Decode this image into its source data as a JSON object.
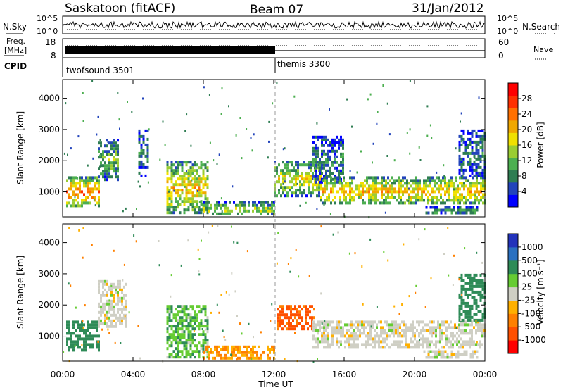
{
  "header": {
    "station": "Saskatoon (fitACF)",
    "beam": "Beam 07",
    "date": "31/Jan/2012"
  },
  "left_labels": {
    "nsky": "N.Sky",
    "freq_line1": "Freq.",
    "freq_line2": "[MHz]",
    "cpid": "CPID"
  },
  "right_labels": {
    "nsearch": "N.Search",
    "nave": "Nave"
  },
  "noise_panel": {
    "left_ticks": [
      "10^5",
      "10^0"
    ],
    "right_ticks": [
      "10^5",
      "10^0"
    ]
  },
  "freq_panel": {
    "left_ticks": [
      "18",
      "8"
    ],
    "right_ticks": [
      "60",
      "0"
    ]
  },
  "cpid_panel": {
    "programs": [
      {
        "label": "twofsound 3501",
        "start_hour": 0
      },
      {
        "label": "themis 3300",
        "start_hour": 12
      }
    ]
  },
  "power_colorbar": {
    "label": "Power [dB]",
    "ticks": [
      "28",
      "24",
      "20",
      "16",
      "12",
      "8",
      "4"
    ],
    "colors": [
      "#0000ff",
      "#2244bb",
      "#2e7d52",
      "#4caf50",
      "#9acd32",
      "#f0e000",
      "#f0a800",
      "#ff7000",
      "#ff3000",
      "#ff0000"
    ]
  },
  "velocity_colorbar": {
    "label": "Velocity [m s⁻¹]",
    "ticks": [
      "1000",
      "500",
      "100",
      "25",
      "-25",
      "-100",
      "-500",
      "-1000"
    ],
    "colors": [
      "#2233bb",
      "#2a70c0",
      "#2e8b57",
      "#66cc33",
      "#cfcfc4",
      "#ffb000",
      "#ff8000",
      "#ff5000",
      "#ff0000"
    ]
  },
  "chart_data": [
    {
      "type": "heatmap",
      "quantity": "Power",
      "ylabel": "Slant Range [km]",
      "y_ticks": [
        1000,
        2000,
        3000,
        4000
      ],
      "ylim": [
        200,
        4600
      ],
      "xlim": [
        0,
        24
      ],
      "x_ticks": [
        "00:00",
        "04:00",
        "08:00",
        "12:00",
        "16:00",
        "20:00",
        "00:00"
      ],
      "regions": [
        {
          "t0": 0.2,
          "t1": 2.1,
          "r0": 550,
          "r1": 1500,
          "value": 20
        },
        {
          "t0": 2.0,
          "t1": 3.2,
          "r0": 1400,
          "r1": 2700,
          "value": 10
        },
        {
          "t0": 4.3,
          "t1": 4.9,
          "r0": 1500,
          "r1": 3000,
          "value": 6
        },
        {
          "t0": 5.9,
          "t1": 8.2,
          "r0": 300,
          "r1": 2000,
          "value": 16
        },
        {
          "t0": 8.0,
          "t1": 12.0,
          "r0": 250,
          "r1": 700,
          "value": 12
        },
        {
          "t0": 12.0,
          "t1": 14.7,
          "r0": 900,
          "r1": 2000,
          "value": 14
        },
        {
          "t0": 14.2,
          "t1": 16.0,
          "r0": 1300,
          "r1": 2800,
          "value": 6
        },
        {
          "t0": 14.6,
          "t1": 24.0,
          "r0": 600,
          "r1": 1500,
          "value": 16
        },
        {
          "t0": 20.5,
          "t1": 23.6,
          "r0": 300,
          "r1": 550,
          "value": 8
        },
        {
          "t0": 22.5,
          "t1": 24.0,
          "r0": 1500,
          "r1": 3000,
          "value": 6
        }
      ]
    },
    {
      "type": "heatmap",
      "quantity": "Velocity",
      "ylabel": "Slant Range [km]",
      "y_ticks": [
        1000,
        2000,
        3000,
        4000
      ],
      "ylim": [
        200,
        4600
      ],
      "xlim": [
        0,
        24
      ],
      "x_ticks": [
        "00:00",
        "04:00",
        "08:00",
        "12:00",
        "16:00",
        "20:00",
        "00:00"
      ],
      "xlabel": "Time UT",
      "regions": [
        {
          "t0": 0.2,
          "t1": 2.1,
          "r0": 550,
          "r1": 1500,
          "value": 100
        },
        {
          "t0": 2.0,
          "t1": 3.6,
          "r0": 1300,
          "r1": 2800,
          "value": 0
        },
        {
          "t0": 5.9,
          "t1": 8.2,
          "r0": 300,
          "r1": 2000,
          "value": 50
        },
        {
          "t0": 8.0,
          "t1": 12.0,
          "r0": 250,
          "r1": 700,
          "value": -60
        },
        {
          "t0": 12.2,
          "t1": 14.3,
          "r0": 1200,
          "r1": 2000,
          "value": -400
        },
        {
          "t0": 14.2,
          "t1": 24.0,
          "r0": 600,
          "r1": 1500,
          "value": 0
        },
        {
          "t0": 20.5,
          "t1": 23.6,
          "r0": 300,
          "r1": 550,
          "value": 0
        },
        {
          "t0": 22.5,
          "t1": 24.0,
          "r0": 1500,
          "r1": 3000,
          "value": 200
        }
      ]
    }
  ]
}
